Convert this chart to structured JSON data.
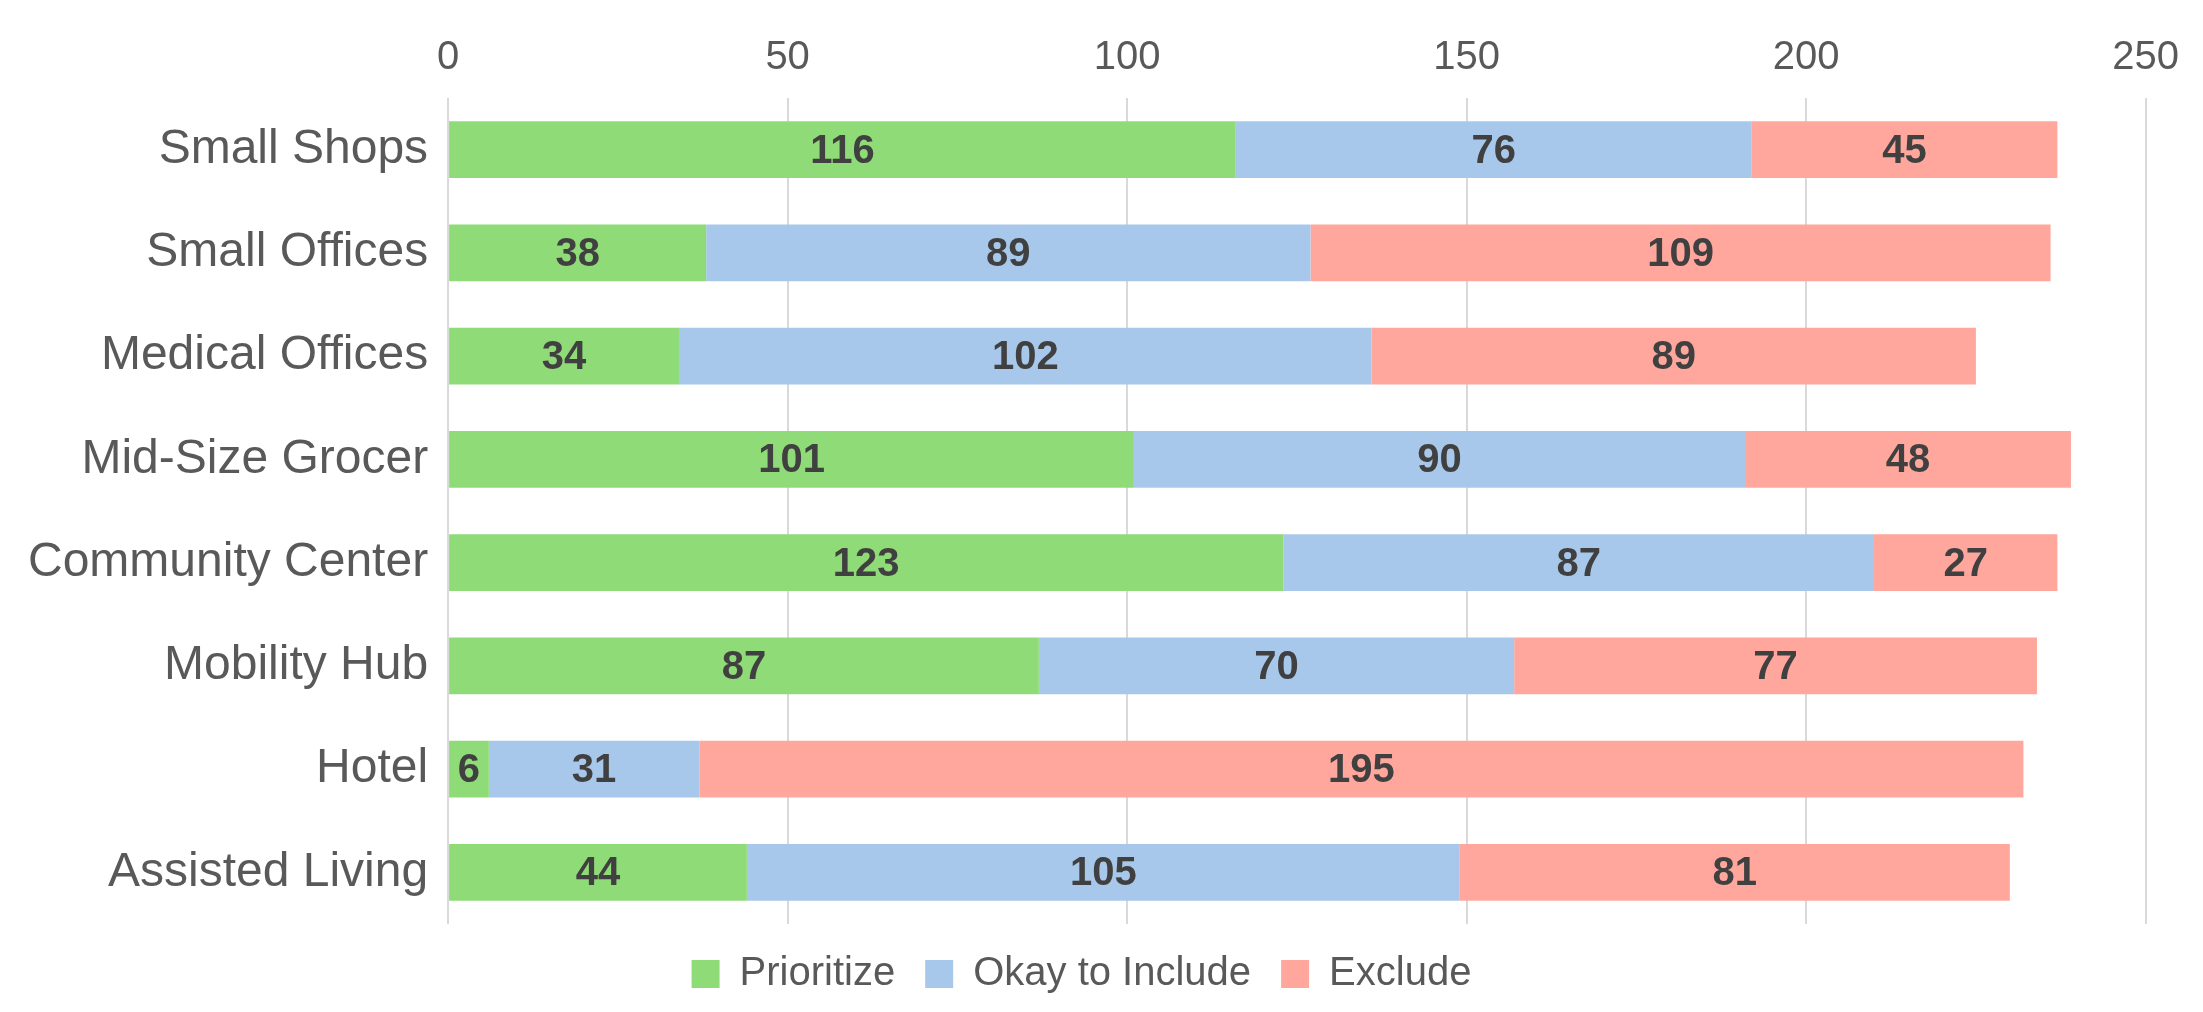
{
  "chart_data": {
    "type": "bar",
    "orientation": "horizontal",
    "stacked": true,
    "data_labels": true,
    "grid": "x",
    "legend": "bottom",
    "categories": [
      "Small Shops",
      "Small Offices",
      "Medical Offices",
      "Mid-Size Grocer",
      "Community Center",
      "Mobility Hub",
      "Hotel",
      "Assisted Living"
    ],
    "series": [
      {
        "name": "Prioritize",
        "color": "#8fdb78",
        "values": [
          116,
          38,
          34,
          101,
          123,
          87,
          6,
          44
        ]
      },
      {
        "name": "Okay to Include",
        "color": "#a8c8eb",
        "values": [
          76,
          89,
          102,
          90,
          87,
          70,
          31,
          105
        ]
      },
      {
        "name": "Exclude",
        "color": "#ffa79c",
        "values": [
          45,
          109,
          89,
          48,
          27,
          77,
          195,
          81
        ]
      }
    ],
    "xlim": [
      0,
      250
    ],
    "xticks": [
      0,
      50,
      100,
      150,
      200,
      250
    ]
  }
}
